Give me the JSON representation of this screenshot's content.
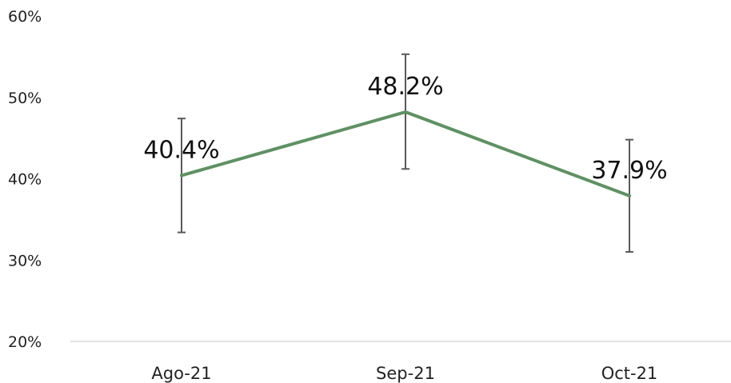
{
  "chart_data": {
    "type": "line",
    "title": "",
    "xlabel": "",
    "ylabel": "",
    "categories": [
      "Ago-21",
      "Sep-21",
      "Oct-21"
    ],
    "series": [
      {
        "values": [
          40.4,
          48.2,
          37.9
        ],
        "error_low": [
          33.4,
          41.2,
          31.0
        ],
        "error_high": [
          47.4,
          55.3,
          44.8
        ],
        "data_labels": [
          "40.4%",
          "48.2%",
          "37.9%"
        ],
        "color": "#5f9163"
      }
    ],
    "ylim": [
      20,
      60
    ],
    "yticks": [
      20,
      30,
      40,
      50,
      60
    ],
    "ytick_labels": [
      "20%",
      "30%",
      "40%",
      "50%",
      "60%"
    ],
    "grid": false,
    "legend": "none",
    "axis_color": "#d9d9d9",
    "errorbar_color": "#595959"
  }
}
